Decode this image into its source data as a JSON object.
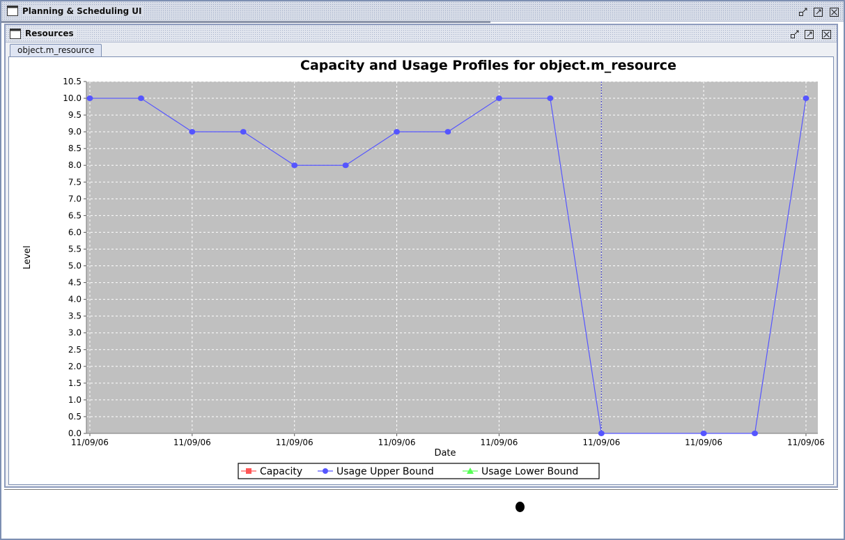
{
  "window": {
    "title": "Planning & Scheduling UI"
  },
  "internal_frame": {
    "title": "Resources"
  },
  "tabs": [
    {
      "label": "object.m_resource",
      "active": true
    }
  ],
  "icons": {
    "window": "window-icon",
    "iconify": "iconify-icon",
    "maximize": "maximize-icon",
    "close": "close-icon"
  },
  "chart_data": {
    "type": "line",
    "title": "Capacity and Usage Profiles for object.m_resource",
    "xlabel": "Date",
    "ylabel": "Level",
    "ylim": [
      0,
      10.5
    ],
    "ytick_step": 0.5,
    "x_tick_labels": [
      "11/09/06",
      "11/09/06",
      "11/09/06",
      "11/09/06",
      "11/09/06",
      "11/09/06",
      "11/09/06",
      "11/09/06"
    ],
    "grid": true,
    "legend_position": "bottom",
    "marker_line_index": 10,
    "series": [
      {
        "name": "Capacity",
        "color": "#ff5555",
        "marker": "square",
        "values": []
      },
      {
        "name": "Usage Upper Bound",
        "color": "#5555ff",
        "marker": "circle",
        "values": [
          10,
          10,
          9,
          9,
          8,
          8,
          9,
          9,
          10,
          10,
          0,
          null,
          0,
          0,
          10
        ]
      },
      {
        "name": "Usage Lower Bound",
        "color": "#55ff55",
        "marker": "triangle",
        "values": []
      }
    ]
  }
}
